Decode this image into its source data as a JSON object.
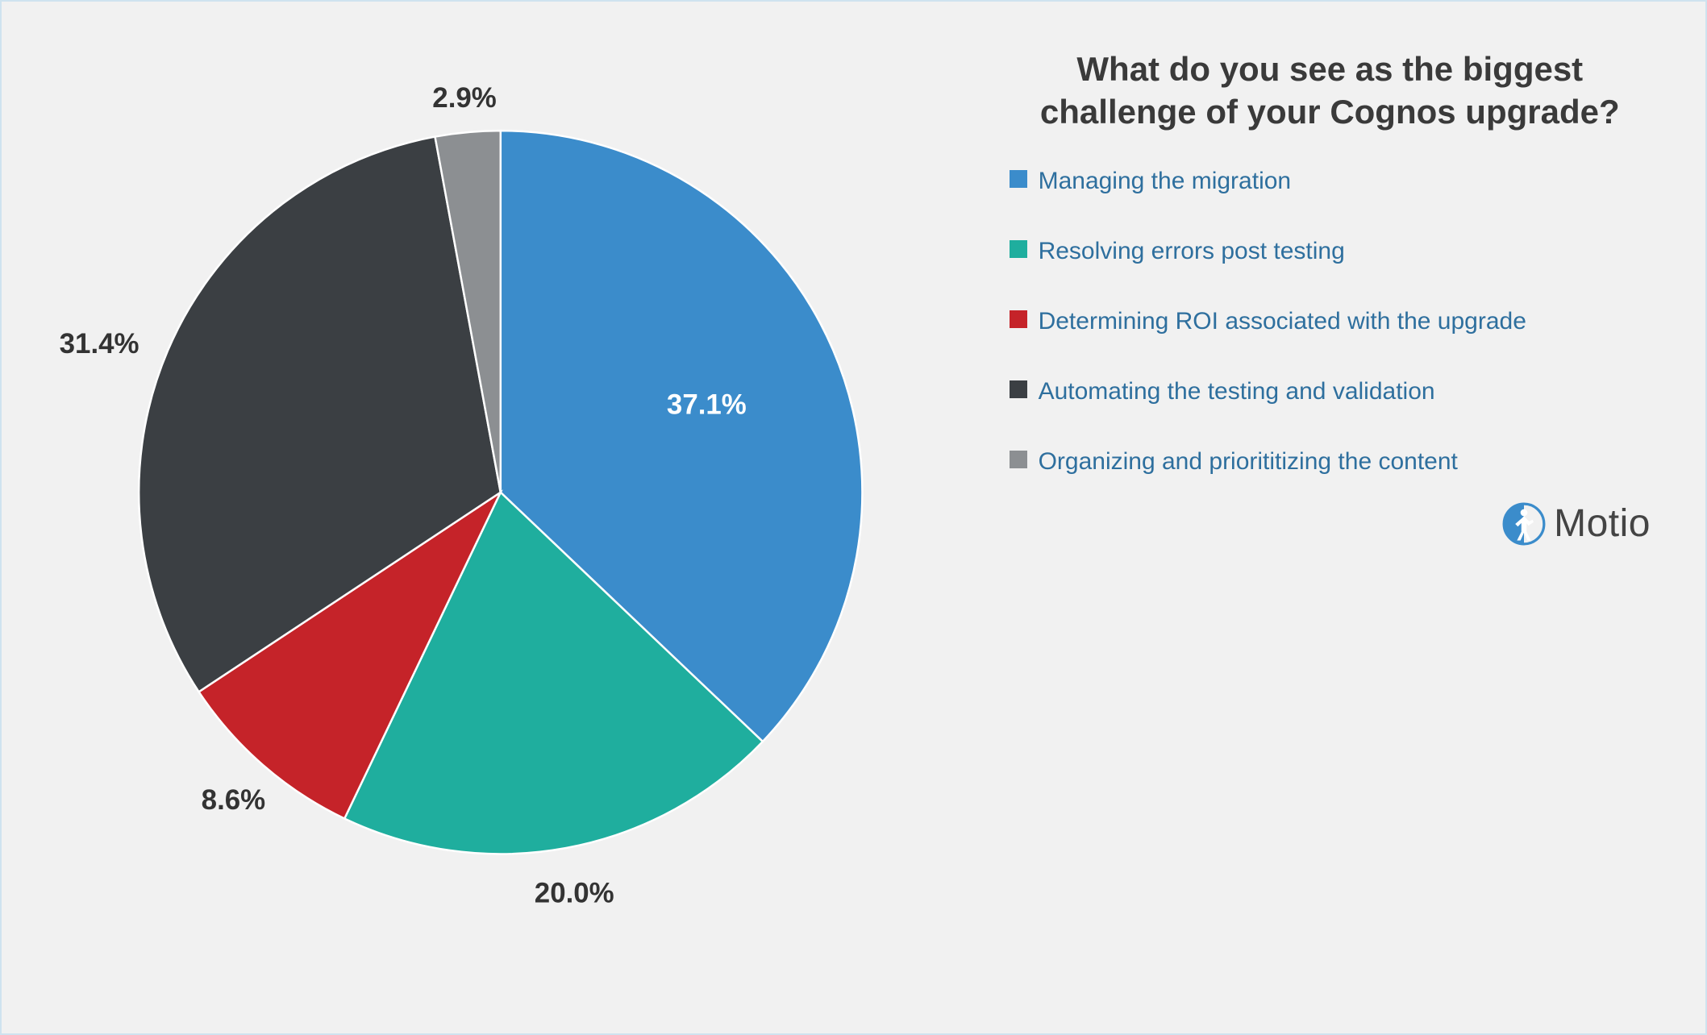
{
  "background_color": "#f1f1f1",
  "border_color": "#cfe3ef",
  "title": "What do you see as the biggest challenge of your Cognos upgrade?",
  "title_color": "#3a3a3a",
  "title_fontsize": 42,
  "legend_text_color": "#2e6f9e",
  "legend_fontsize": 30,
  "chart": {
    "type": "pie",
    "radius": 360,
    "start_angle_deg": -90,
    "clockwise": true,
    "slice_border_color": "#ffffff",
    "slice_border_width": 2,
    "label_fontsize": 28,
    "label_color_inside": "#ffffff",
    "label_color_outside": "#333333",
    "slices": [
      {
        "label": "Managing the migration",
        "value": 37.1,
        "display": "37.1%",
        "color": "#3b8ccb",
        "label_placement": "inside"
      },
      {
        "label": "Resolving errors post testing",
        "value": 20.0,
        "display": "20.0%",
        "color": "#1fae9e",
        "label_placement": "outside-bottom"
      },
      {
        "label": "Determining ROI associated with the upgrade",
        "value": 8.6,
        "display": "8.6%",
        "color": "#c52329",
        "label_placement": "outside-bottom"
      },
      {
        "label": "Automating the testing and validation",
        "value": 31.4,
        "display": "31.4%",
        "color": "#3b3f43",
        "label_placement": "outside-left"
      },
      {
        "label": "Organizing and priorititizing the content",
        "value": 2.9,
        "display": "2.9%",
        "color": "#8c8f92",
        "label_placement": "outside-top"
      }
    ]
  },
  "brand": {
    "name": "Motio",
    "mark_color": "#3b8ccb",
    "text_color": "#444444"
  }
}
